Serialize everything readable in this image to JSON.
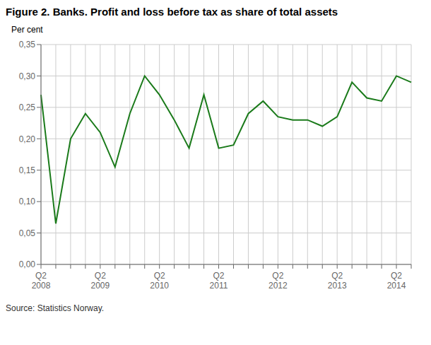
{
  "chart_data": {
    "type": "line",
    "title": "Figure 2. Banks. Profit and loss before tax as share of total assets",
    "ylabel": "Per cent",
    "source": "Source: Statistics Norway.",
    "color": "#1a7a1a",
    "grid": true,
    "categories": [
      "Q2\n2008",
      null,
      null,
      null,
      "Q2\n2009",
      null,
      null,
      null,
      "Q2\n2010",
      null,
      null,
      null,
      "Q2\n2011",
      null,
      null,
      null,
      "Q2\n2012",
      null,
      null,
      null,
      "Q2\n2013",
      null,
      null,
      null,
      "Q2\n2014",
      null
    ],
    "values": [
      0.27,
      0.065,
      0.2,
      0.24,
      0.21,
      0.155,
      0.24,
      0.3,
      0.27,
      0.23,
      0.185,
      0.27,
      0.185,
      0.19,
      0.24,
      0.26,
      0.235,
      0.23,
      0.23,
      0.22,
      0.235,
      0.29,
      0.265,
      0.26,
      0.3,
      0.29
    ],
    "ylim": [
      0.0,
      0.35
    ],
    "yticks": [
      {
        "value": 0.0,
        "label": "0,00"
      },
      {
        "value": 0.05,
        "label": "0,05"
      },
      {
        "value": 0.1,
        "label": "0,10"
      },
      {
        "value": 0.15,
        "label": "0,15"
      },
      {
        "value": 0.2,
        "label": "0,20"
      },
      {
        "value": 0.25,
        "label": "0,25"
      },
      {
        "value": 0.3,
        "label": "0,30"
      },
      {
        "value": 0.35,
        "label": "0,35"
      }
    ]
  }
}
